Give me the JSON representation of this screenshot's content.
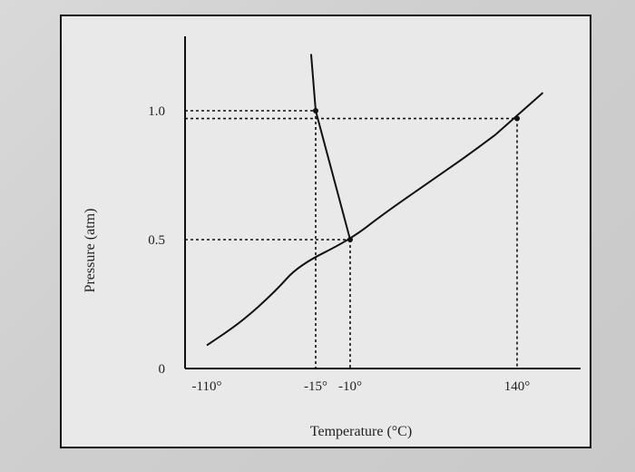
{
  "chart_data": {
    "type": "line",
    "title": "",
    "xlabel": "Temperature (°C)",
    "ylabel": "Pressure (atm)",
    "x_ticks": [
      {
        "value": -110,
        "label": "-110°"
      },
      {
        "value": -15,
        "label": "-15°"
      },
      {
        "value": -10,
        "label": "-10°"
      },
      {
        "value": 140,
        "label": "140°"
      }
    ],
    "y_ticks": [
      {
        "value": 0,
        "label": "0"
      },
      {
        "value": 0.5,
        "label": "0.5"
      },
      {
        "value": 1.0,
        "label": "1.0"
      }
    ],
    "series": [
      {
        "points": [
          [
            -110,
            0.09
          ],
          [
            -80,
            0.18
          ],
          [
            -50,
            0.3
          ],
          [
            -30,
            0.4
          ],
          [
            -10,
            0.5
          ],
          [
            20,
            0.6
          ],
          [
            60,
            0.72
          ],
          [
            100,
            0.84
          ],
          [
            140,
            0.97
          ],
          [
            155,
            1.07
          ]
        ]
      },
      {
        "points": [
          [
            -10,
            0.5
          ],
          [
            -15,
            1.0
          ],
          [
            -19,
            1.22
          ]
        ]
      }
    ],
    "marked_points": [
      {
        "x": -10,
        "y": 0.5
      },
      {
        "x": -15,
        "y": 1.0
      },
      {
        "x": 140,
        "y": 0.97
      }
    ],
    "grid": false,
    "legend": "none"
  }
}
